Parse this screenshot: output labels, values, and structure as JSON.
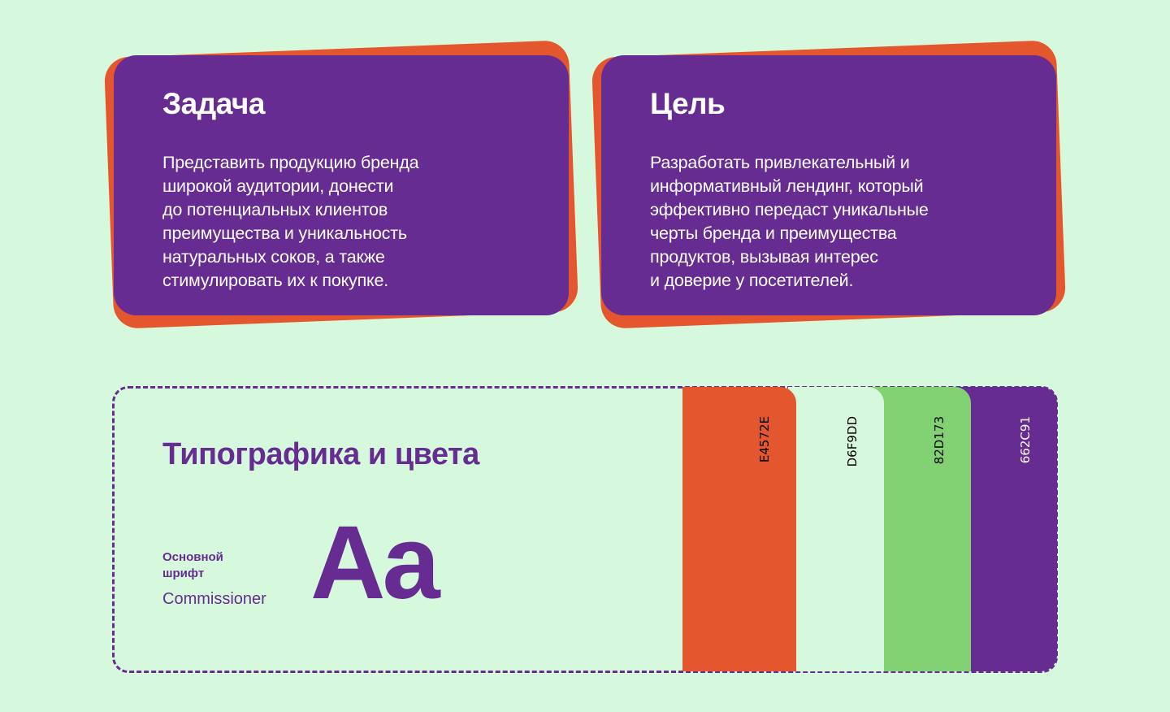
{
  "cards": [
    {
      "title": "Задача",
      "text": "Представить продукцию бренда\nширокой аудитории, донести\nдо потенциальных клиентов\nпреимущества и уникальность\nнатуральных соков, а также\nстимулировать их к покупке."
    },
    {
      "title": "Цель",
      "text": "Разработать привлекательный и\nинформативный лендинг, который\nэффективно передаст уникальные\nчерты бренда и преимущества\nпродуктов, вызывая интерес\nи доверие у посетителей."
    }
  ],
  "typography": {
    "title": "Типографика и цвета",
    "font_label": "Основной\nшрифт",
    "font_name": "Commissioner",
    "sample": "Aa"
  },
  "palette": [
    {
      "label": "E4572E",
      "color": "#E4572E",
      "text_color": "#000000"
    },
    {
      "label": "D6F9DD",
      "color": "#D6F9DD",
      "text_color": "#000000"
    },
    {
      "label": "82D173",
      "color": "#82D173",
      "text_color": "#000000"
    },
    {
      "label": "662C91",
      "color": "#662C91",
      "text_color": "#FFFFFF"
    }
  ],
  "colors": {
    "background": "#D6F9DD",
    "accent": "#662C91",
    "secondary": "#E4572E"
  }
}
